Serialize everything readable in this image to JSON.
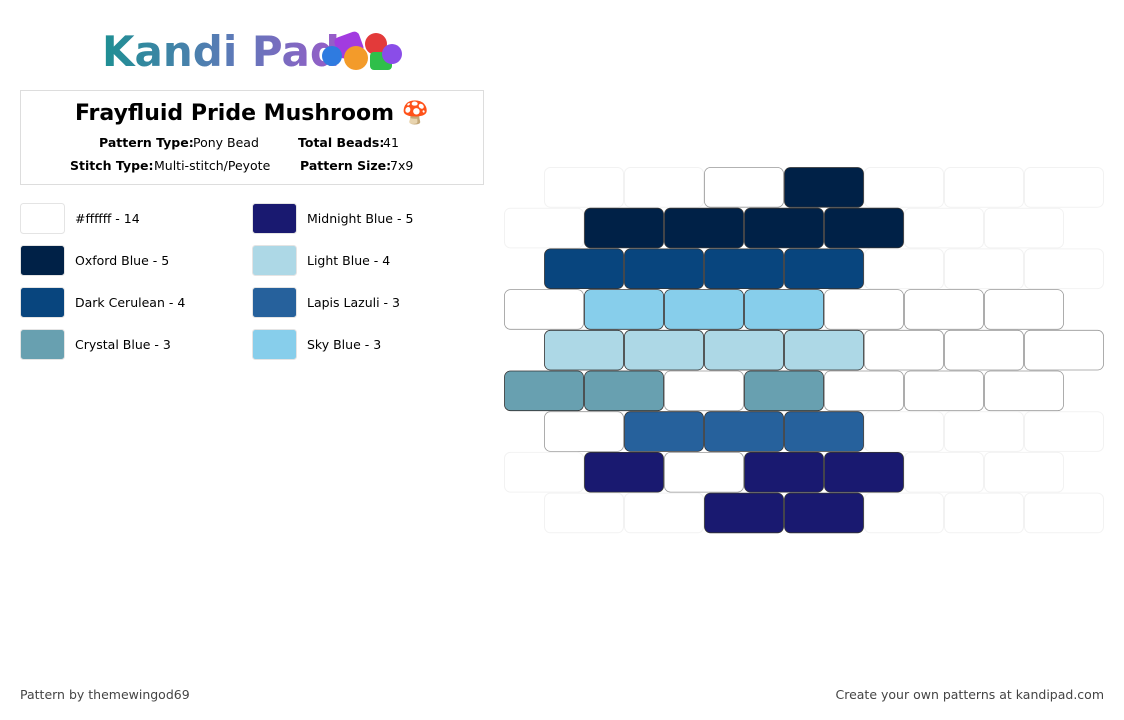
{
  "header": {
    "logo": "Kandi Pad"
  },
  "info": {
    "title": "Frayfluid Pride Mushroom 🍄",
    "fields": [
      {
        "label": "Pattern Type:",
        "value": "Pony Bead"
      },
      {
        "label": "Total Beads:",
        "value": 41
      },
      {
        "label": "Stitch Type:",
        "value": "Multi-stitch/Peyote"
      },
      {
        "label": "Pattern Size:",
        "value": "7x9"
      }
    ]
  },
  "legend": [
    {
      "label": "#ffffff - 14",
      "color": "#ffffff"
    },
    {
      "label": "Midnight Blue - 5",
      "color": "#191970"
    },
    {
      "label": "Oxford Blue - 5",
      "color": "#002147"
    },
    {
      "label": "Light Blue - 4",
      "color": "#add8e6"
    },
    {
      "label": "Dark Cerulean - 4",
      "color": "#08457e"
    },
    {
      "label": "Lapis Lazuli - 3",
      "color": "#26619c"
    },
    {
      "label": "Crystal Blue - 3",
      "color": "#68a0b0"
    },
    {
      "label": "Sky Blue - 3",
      "color": "#87ceeb"
    }
  ],
  "pattern": {
    "rows": [
      [
        null,
        null,
        "#ffffff",
        "#002147",
        null,
        null,
        null
      ],
      [
        null,
        "#002147",
        "#002147",
        "#002147",
        "#002147",
        null,
        null
      ],
      [
        "#08457e",
        "#08457e",
        "#08457e",
        "#08457e",
        null,
        null,
        null
      ],
      [
        "#ffffff",
        "#87ceeb",
        "#87ceeb",
        "#87ceeb",
        "#ffffff",
        "#ffffff",
        "#ffffff"
      ],
      [
        "#add8e6",
        "#add8e6",
        "#add8e6",
        "#add8e6",
        "#ffffff",
        "#ffffff",
        "#ffffff"
      ],
      [
        "#68a0b0",
        "#68a0b0",
        "#ffffff",
        "#68a0b0",
        "#ffffff",
        "#ffffff",
        "#ffffff"
      ],
      [
        "#ffffff",
        "#26619c",
        "#26619c",
        "#26619c",
        null,
        null,
        null
      ],
      [
        null,
        "#191970",
        "#ffffff",
        "#191970",
        "#191970",
        null,
        null
      ],
      [
        null,
        null,
        "#191970",
        "#191970",
        null,
        null,
        null
      ]
    ]
  },
  "footer": {
    "credit": "Pattern by themewingod69",
    "promo": "Create your own patterns at kandipad.com"
  }
}
